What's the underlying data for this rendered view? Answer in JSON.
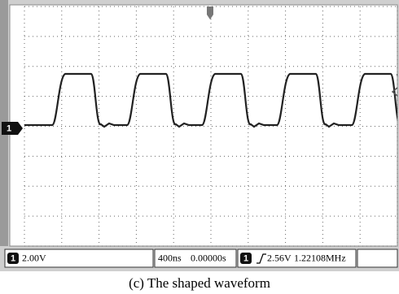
{
  "status_bar": {
    "channel": "1",
    "volts_per_div": "2.00V",
    "time_per_div": "400ns",
    "delay": "0.00000s",
    "trigger_channel": "1",
    "trigger_level": "2.56V",
    "frequency": "1.22108MHz"
  },
  "marker": {
    "channel": "1"
  },
  "caption": "(c) The shaped waveform"
}
